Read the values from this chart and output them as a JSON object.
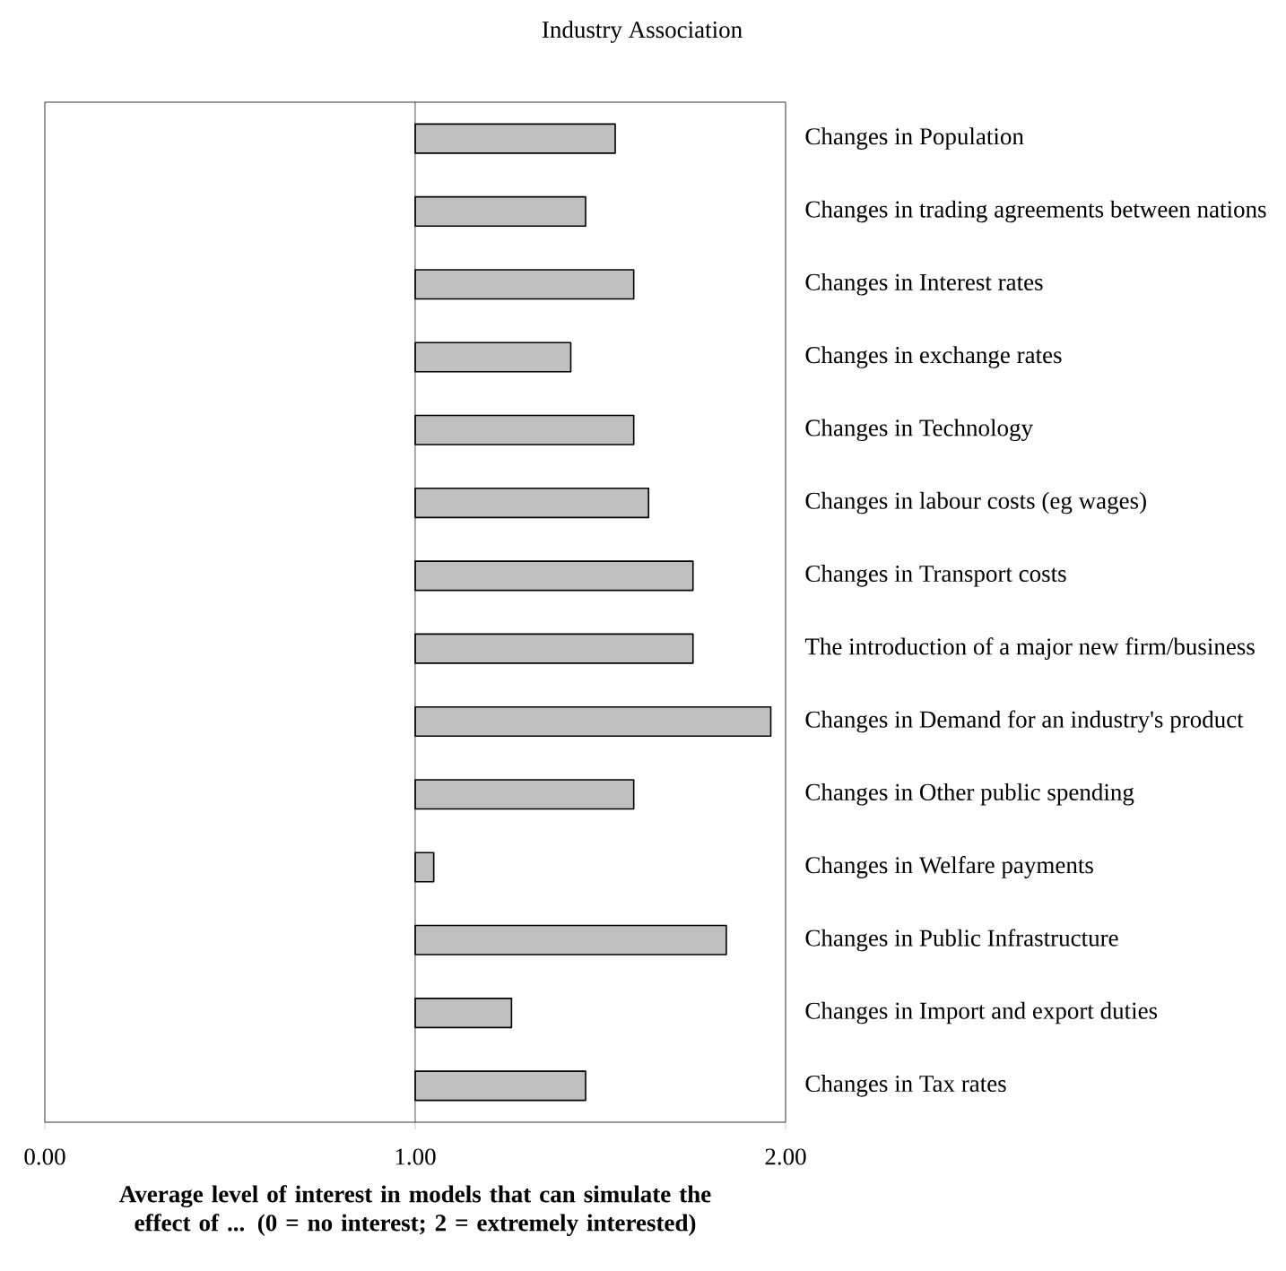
{
  "chart_data": {
    "type": "bar",
    "orientation": "horizontal",
    "title": "Industry Association",
    "xlabel": "**Average level of interest in models that can simulate the effect of ... (0 = no interest; 2 = extremely interested)**",
    "categories": [
      "Changes in Population",
      "Changes in trading agreements between nations",
      "Changes in Interest rates",
      "Changes in exchange rates",
      "Changes in Technology",
      "Changes in labour costs (eg wages)",
      "Changes in Transport costs",
      "The introduction of a major new firm/business",
      "Changes in Demand for an industry's product",
      "Changes in Other public spending",
      "Changes in Welfare payments",
      "Changes in Public Infrastructure",
      "Changes in Import and export duties",
      "Changes in Tax rates"
    ],
    "base": [
      1,
      1,
      1,
      1,
      1,
      1,
      1,
      1,
      1,
      1,
      1,
      1,
      1,
      1
    ],
    "values": [
      0.54,
      0.46,
      0.59,
      0.42,
      0.59,
      0.63,
      0.75,
      0.75,
      0.96,
      0.59,
      0.05,
      0.84,
      0.26,
      0.46
    ],
    "color": "#c0c0c0",
    "xlim": [
      0,
      2
    ],
    "xticks": [
      {
        "value": 0,
        "label": "0.00"
      },
      {
        "value": 1,
        "label": "1.00"
      },
      {
        "value": 2,
        "label": "2.00"
      }
    ]
  }
}
